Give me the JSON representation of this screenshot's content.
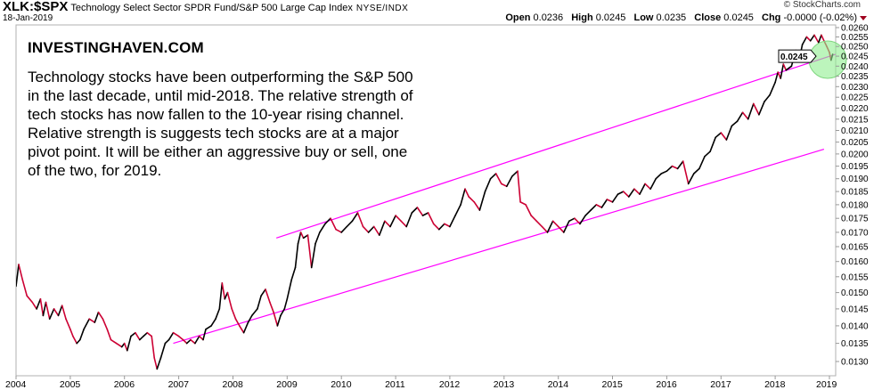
{
  "header": {
    "symbol": "XLK:$SPX",
    "name": "Technology Select Sector SPDR Fund/S&P 500 Large Cap Index",
    "exchange": "NYSE/INDX",
    "date": "18-Jan-2019",
    "copyright": "© StockCharts.com",
    "ohlc": {
      "open_label": "Open",
      "open": "0.0236",
      "high_label": "High",
      "high": "0.0245",
      "low_label": "Low",
      "low": "0.0235",
      "close_label": "Close",
      "close": "0.0245",
      "chg_label": "Chg",
      "chg": "-0.0000 (-0.02%)"
    }
  },
  "annotation": {
    "title": "INVESTINGHAVEN.COM",
    "text": "Technology stocks have been outperforming the S&P 500 in the last decade, until mid-2018. The relative strength of tech stocks has now fallen to the 10-year rising channel. Relative strength is suggests tech stocks are at a major pivot point. It will be either an aggressive buy or sell, one of the two, for 2019."
  },
  "colors": {
    "up": "#000000",
    "down": "#cc0033",
    "trendline": "#ff00ff",
    "highlight": "#90ee90"
  },
  "chart_data": {
    "type": "line",
    "title": "XLK:$SPX Technology Select Sector SPDR Fund/S&P 500 Large Cap Index",
    "xlabel": "",
    "ylabel": "",
    "y_scale": "log",
    "xlim": [
      2004.0,
      2019.1
    ],
    "ylim": [
      0.0127,
      0.0262
    ],
    "grid": false,
    "x_ticks": [
      "2004",
      "2005",
      "2006",
      "2007",
      "2008",
      "2009",
      "2010",
      "2011",
      "2012",
      "2013",
      "2014",
      "2015",
      "2016",
      "2017",
      "2018",
      "2019"
    ],
    "y_ticks": [
      "0.0260",
      "0.0255",
      "0.0250",
      "0.0245",
      "0.0240",
      "0.0235",
      "0.0230",
      "0.0225",
      "0.0220",
      "0.0215",
      "0.0210",
      "0.0205",
      "0.0200",
      "0.0195",
      "0.0190",
      "0.0185",
      "0.0180",
      "0.0175",
      "0.0170",
      "0.0165",
      "0.0160",
      "0.0155",
      "0.0150",
      "0.0145",
      "0.0140",
      "0.0135",
      "0.0130"
    ],
    "last_value_label": "0.0245",
    "series": [
      {
        "name": "XLK:$SPX",
        "points": [
          [
            2004.0,
            0.0152
          ],
          [
            2004.05,
            0.0159
          ],
          [
            2004.12,
            0.0154
          ],
          [
            2004.2,
            0.0149
          ],
          [
            2004.3,
            0.0147
          ],
          [
            2004.38,
            0.0145
          ],
          [
            2004.45,
            0.0148
          ],
          [
            2004.5,
            0.0143
          ],
          [
            2004.55,
            0.0147
          ],
          [
            2004.62,
            0.0142
          ],
          [
            2004.7,
            0.0145
          ],
          [
            2004.78,
            0.0143
          ],
          [
            2004.85,
            0.0146
          ],
          [
            2004.92,
            0.0142
          ],
          [
            2005.0,
            0.0139
          ],
          [
            2005.05,
            0.0137
          ],
          [
            2005.12,
            0.0135
          ],
          [
            2005.18,
            0.0136
          ],
          [
            2005.25,
            0.0139
          ],
          [
            2005.35,
            0.0142
          ],
          [
            2005.45,
            0.0141
          ],
          [
            2005.52,
            0.0144
          ],
          [
            2005.6,
            0.0142
          ],
          [
            2005.68,
            0.0139
          ],
          [
            2005.75,
            0.0136
          ],
          [
            2005.85,
            0.0135
          ],
          [
            2005.95,
            0.0134
          ],
          [
            2006.0,
            0.0135
          ],
          [
            2006.05,
            0.0133
          ],
          [
            2006.12,
            0.0137
          ],
          [
            2006.2,
            0.0138
          ],
          [
            2006.28,
            0.0136
          ],
          [
            2006.35,
            0.0137
          ],
          [
            2006.42,
            0.0138
          ],
          [
            2006.5,
            0.0137
          ],
          [
            2006.55,
            0.0131
          ],
          [
            2006.6,
            0.0128
          ],
          [
            2006.67,
            0.0131
          ],
          [
            2006.75,
            0.0135
          ],
          [
            2006.82,
            0.0136
          ],
          [
            2006.9,
            0.0138
          ],
          [
            2007.0,
            0.0137
          ],
          [
            2007.08,
            0.0136
          ],
          [
            2007.15,
            0.0135
          ],
          [
            2007.22,
            0.0136
          ],
          [
            2007.3,
            0.0135
          ],
          [
            2007.38,
            0.0137
          ],
          [
            2007.45,
            0.0136
          ],
          [
            2007.5,
            0.0139
          ],
          [
            2007.6,
            0.014
          ],
          [
            2007.68,
            0.0142
          ],
          [
            2007.75,
            0.0145
          ],
          [
            2007.8,
            0.0153
          ],
          [
            2007.85,
            0.0148
          ],
          [
            2007.9,
            0.015
          ],
          [
            2007.98,
            0.0145
          ],
          [
            2008.05,
            0.0142
          ],
          [
            2008.12,
            0.014
          ],
          [
            2008.2,
            0.0138
          ],
          [
            2008.28,
            0.0141
          ],
          [
            2008.35,
            0.0143
          ],
          [
            2008.45,
            0.0145
          ],
          [
            2008.52,
            0.0149
          ],
          [
            2008.6,
            0.0151
          ],
          [
            2008.68,
            0.0147
          ],
          [
            2008.75,
            0.0144
          ],
          [
            2008.82,
            0.014
          ],
          [
            2008.88,
            0.0143
          ],
          [
            2008.95,
            0.0145
          ],
          [
            2009.0,
            0.0148
          ],
          [
            2009.08,
            0.0154
          ],
          [
            2009.15,
            0.0158
          ],
          [
            2009.2,
            0.0166
          ],
          [
            2009.25,
            0.017
          ],
          [
            2009.3,
            0.0168
          ],
          [
            2009.38,
            0.0169
          ],
          [
            2009.45,
            0.0158
          ],
          [
            2009.52,
            0.0166
          ],
          [
            2009.6,
            0.017
          ],
          [
            2009.7,
            0.0173
          ],
          [
            2009.8,
            0.0175
          ],
          [
            2009.9,
            0.0171
          ],
          [
            2010.0,
            0.017
          ],
          [
            2010.1,
            0.0172
          ],
          [
            2010.2,
            0.0174
          ],
          [
            2010.3,
            0.0177
          ],
          [
            2010.4,
            0.0172
          ],
          [
            2010.5,
            0.017
          ],
          [
            2010.6,
            0.0172
          ],
          [
            2010.7,
            0.0169
          ],
          [
            2010.8,
            0.0174
          ],
          [
            2010.9,
            0.0172
          ],
          [
            2011.0,
            0.0176
          ],
          [
            2011.1,
            0.0174
          ],
          [
            2011.2,
            0.0172
          ],
          [
            2011.3,
            0.0177
          ],
          [
            2011.4,
            0.0179
          ],
          [
            2011.5,
            0.0176
          ],
          [
            2011.6,
            0.0177
          ],
          [
            2011.7,
            0.0173
          ],
          [
            2011.8,
            0.0171
          ],
          [
            2011.9,
            0.0173
          ],
          [
            2012.0,
            0.0172
          ],
          [
            2012.1,
            0.0176
          ],
          [
            2012.2,
            0.018
          ],
          [
            2012.28,
            0.0186
          ],
          [
            2012.35,
            0.0183
          ],
          [
            2012.45,
            0.0181
          ],
          [
            2012.55,
            0.0178
          ],
          [
            2012.65,
            0.0185
          ],
          [
            2012.75,
            0.019
          ],
          [
            2012.85,
            0.0192
          ],
          [
            2012.95,
            0.0188
          ],
          [
            2013.05,
            0.0187
          ],
          [
            2013.15,
            0.0191
          ],
          [
            2013.25,
            0.0193
          ],
          [
            2013.3,
            0.0181
          ],
          [
            2013.4,
            0.018
          ],
          [
            2013.5,
            0.0176
          ],
          [
            2013.6,
            0.0174
          ],
          [
            2013.7,
            0.0172
          ],
          [
            2013.8,
            0.017
          ],
          [
            2013.9,
            0.0174
          ],
          [
            2014.0,
            0.0172
          ],
          [
            2014.1,
            0.017
          ],
          [
            2014.2,
            0.0174
          ],
          [
            2014.3,
            0.0175
          ],
          [
            2014.4,
            0.0173
          ],
          [
            2014.5,
            0.0176
          ],
          [
            2014.6,
            0.0178
          ],
          [
            2014.7,
            0.018
          ],
          [
            2014.8,
            0.0179
          ],
          [
            2014.9,
            0.0182
          ],
          [
            2015.0,
            0.0181
          ],
          [
            2015.1,
            0.0184
          ],
          [
            2015.2,
            0.0185
          ],
          [
            2015.3,
            0.0183
          ],
          [
            2015.4,
            0.0186
          ],
          [
            2015.5,
            0.0184
          ],
          [
            2015.6,
            0.0188
          ],
          [
            2015.7,
            0.0186
          ],
          [
            2015.8,
            0.019
          ],
          [
            2015.9,
            0.0192
          ],
          [
            2016.0,
            0.0193
          ],
          [
            2016.1,
            0.0195
          ],
          [
            2016.2,
            0.0194
          ],
          [
            2016.3,
            0.0197
          ],
          [
            2016.4,
            0.0188
          ],
          [
            2016.5,
            0.0192
          ],
          [
            2016.6,
            0.0194
          ],
          [
            2016.7,
            0.0199
          ],
          [
            2016.8,
            0.0201
          ],
          [
            2016.9,
            0.0207
          ],
          [
            2017.0,
            0.0209
          ],
          [
            2017.1,
            0.0206
          ],
          [
            2017.2,
            0.0212
          ],
          [
            2017.3,
            0.0214
          ],
          [
            2017.4,
            0.0218
          ],
          [
            2017.5,
            0.0215
          ],
          [
            2017.6,
            0.0222
          ],
          [
            2017.7,
            0.0217
          ],
          [
            2017.8,
            0.0223
          ],
          [
            2017.9,
            0.0226
          ],
          [
            2018.0,
            0.0232
          ],
          [
            2018.05,
            0.0237
          ],
          [
            2018.1,
            0.0234
          ],
          [
            2018.15,
            0.0241
          ],
          [
            2018.2,
            0.0238
          ],
          [
            2018.3,
            0.024
          ],
          [
            2018.38,
            0.0248
          ],
          [
            2018.45,
            0.0244
          ],
          [
            2018.5,
            0.0251
          ],
          [
            2018.58,
            0.0255
          ],
          [
            2018.65,
            0.0253
          ],
          [
            2018.72,
            0.0256
          ],
          [
            2018.8,
            0.0252
          ],
          [
            2018.85,
            0.0256
          ],
          [
            2018.9,
            0.0253
          ],
          [
            2018.95,
            0.025
          ],
          [
            2019.0,
            0.0247
          ],
          [
            2019.03,
            0.0243
          ],
          [
            2019.06,
            0.0246
          ]
        ]
      }
    ],
    "trendlines": [
      {
        "name": "upper-channel",
        "from": [
          2008.8,
          0.0168
        ],
        "to": [
          2019.2,
          0.0246
        ]
      },
      {
        "name": "lower-channel",
        "from": [
          2006.9,
          0.0135
        ],
        "to": [
          2018.9,
          0.0202
        ]
      }
    ]
  }
}
